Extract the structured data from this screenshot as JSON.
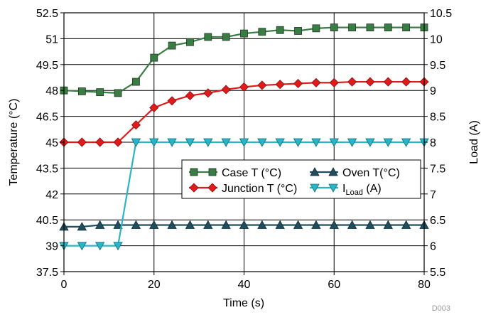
{
  "chart_data": {
    "type": "line",
    "xlabel": "Time (s)",
    "ylabel_left": "Temperature (°C)",
    "ylabel_right": "Load (A)",
    "xlim": [
      0,
      80
    ],
    "ylim_left": [
      37.5,
      52.5
    ],
    "ylim_right": [
      5.5,
      10.5
    ],
    "xticks": [
      "0",
      "20",
      "40",
      "60",
      "80"
    ],
    "yticks_left": [
      "37.5",
      "39",
      "40.5",
      "42",
      "43.5",
      "45",
      "46.5",
      "48",
      "49.5",
      "51",
      "52.5"
    ],
    "yticks_right": [
      "5.5",
      "6",
      "6.5",
      "7",
      "7.5",
      "8",
      "8.5",
      "9",
      "9.5",
      "10",
      "10.5"
    ],
    "grid": true,
    "legend_placement": "center-right",
    "footnote": "D003",
    "series": [
      {
        "name": "Case T (°C)",
        "axis": "left",
        "color": "#3a7d44",
        "marker": "square",
        "x": [
          0,
          4,
          8,
          12,
          16,
          20,
          24,
          28,
          32,
          36,
          40,
          44,
          48,
          52,
          56,
          60,
          64,
          68,
          72,
          76,
          80
        ],
        "y": [
          48.0,
          47.95,
          47.9,
          47.85,
          48.5,
          49.9,
          50.6,
          50.8,
          51.1,
          51.1,
          51.3,
          51.4,
          51.5,
          51.45,
          51.6,
          51.65,
          51.65,
          51.65,
          51.65,
          51.65,
          51.65
        ]
      },
      {
        "name": "Junction T (°C)",
        "axis": "left",
        "color": "#e01b1b",
        "marker": "diamond",
        "x": [
          0,
          4,
          8,
          12,
          16,
          20,
          24,
          28,
          32,
          36,
          40,
          44,
          48,
          52,
          56,
          60,
          64,
          68,
          72,
          76,
          80
        ],
        "y": [
          45.0,
          45.0,
          45.0,
          45.0,
          46.0,
          47.0,
          47.4,
          47.7,
          47.85,
          48.05,
          48.2,
          48.3,
          48.35,
          48.4,
          48.45,
          48.45,
          48.5,
          48.5,
          48.5,
          48.5,
          48.5
        ]
      },
      {
        "name": "Oven T(°C)",
        "axis": "left",
        "color": "#1f4e5f",
        "marker": "triangle-up",
        "x": [
          0,
          4,
          8,
          12,
          16,
          20,
          24,
          28,
          32,
          36,
          40,
          44,
          48,
          52,
          56,
          60,
          64,
          68,
          72,
          76,
          80
        ],
        "y": [
          40.1,
          40.1,
          40.2,
          40.2,
          40.2,
          40.2,
          40.2,
          40.2,
          40.2,
          40.2,
          40.2,
          40.2,
          40.2,
          40.2,
          40.2,
          40.2,
          40.2,
          40.2,
          40.2,
          40.2,
          40.2
        ]
      },
      {
        "name": "I_Load (A)",
        "label_main": "I",
        "label_sub": "Load",
        "label_tail": " (A)",
        "axis": "right",
        "color": "#2bb4c8",
        "marker": "triangle-down",
        "x": [
          0,
          4,
          8,
          12,
          16,
          20,
          24,
          28,
          32,
          36,
          40,
          44,
          48,
          52,
          56,
          60,
          64,
          68,
          72,
          76,
          80
        ],
        "y": [
          6.0,
          6.0,
          6.0,
          6.0,
          8.0,
          8.0,
          8.0,
          8.0,
          8.0,
          8.0,
          8.0,
          8.0,
          8.0,
          8.0,
          8.0,
          8.0,
          8.0,
          8.0,
          8.0,
          8.0,
          8.0
        ]
      }
    ]
  }
}
